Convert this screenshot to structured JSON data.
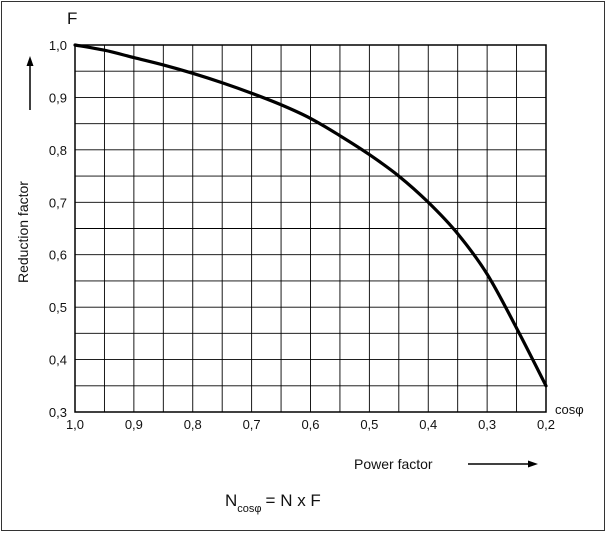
{
  "chart_data": {
    "type": "line",
    "title": "",
    "xlabel": "Power factor",
    "x_axis_unit": "cosφ",
    "ylabel": "Reduction factor",
    "y_axis_symbol": "F",
    "xlim": [
      1.0,
      0.2
    ],
    "ylim": [
      0.3,
      1.0
    ],
    "x_reversed": true,
    "grid": true,
    "x_ticks": [
      "1,0",
      "0,9",
      "0,8",
      "0,7",
      "0,6",
      "0,5",
      "0,4",
      "0,3",
      "0,2"
    ],
    "y_ticks": [
      "0,3",
      "0,4",
      "0,5",
      "0,6",
      "0,7",
      "0,8",
      "0,9",
      "1,0"
    ],
    "series": [
      {
        "x": [
          1.0,
          0.95,
          0.9,
          0.85,
          0.8,
          0.75,
          0.7,
          0.65,
          0.6,
          0.55,
          0.5,
          0.45,
          0.4,
          0.35,
          0.3,
          0.25,
          0.2
        ],
        "values": [
          1.0,
          0.99,
          0.976,
          0.962,
          0.946,
          0.928,
          0.908,
          0.886,
          0.86,
          0.827,
          0.791,
          0.75,
          0.7,
          0.64,
          0.563,
          0.46,
          0.35
        ]
      }
    ],
    "formula": {
      "main": "N",
      "sub": "cosφ",
      "rest": "= N x F"
    }
  }
}
